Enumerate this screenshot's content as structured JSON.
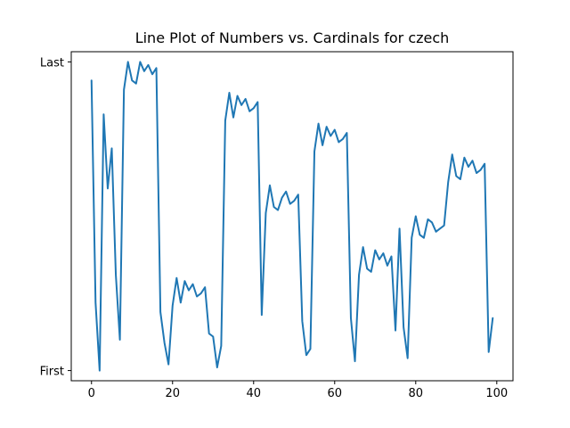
{
  "chart_data": {
    "type": "line",
    "title": "Line Plot of Numbers vs. Cardinals for czech",
    "xlabel": "",
    "ylabel": "",
    "xlim": [
      -5,
      104
    ],
    "ylim": [
      -0.033,
      1.033
    ],
    "xticks": [
      0,
      20,
      40,
      60,
      80,
      100
    ],
    "xtick_labels": [
      "0",
      "20",
      "40",
      "60",
      "80",
      "100"
    ],
    "yticks": [
      0,
      1
    ],
    "ytick_labels": [
      "First",
      "Last"
    ],
    "grid": false,
    "series": [
      {
        "color": "#1f77b4",
        "x": [
          0,
          1,
          2,
          3,
          4,
          5,
          6,
          7,
          8,
          9,
          10,
          11,
          12,
          13,
          14,
          15,
          16,
          17,
          18,
          19,
          20,
          21,
          22,
          23,
          24,
          25,
          26,
          27,
          28,
          29,
          30,
          31,
          32,
          33,
          34,
          35,
          36,
          37,
          38,
          39,
          40,
          41,
          42,
          43,
          44,
          45,
          46,
          47,
          48,
          49,
          50,
          51,
          52,
          53,
          54,
          55,
          56,
          57,
          58,
          59,
          60,
          61,
          62,
          63,
          64,
          65,
          66,
          67,
          68,
          69,
          70,
          71,
          72,
          73,
          74,
          75,
          76,
          77,
          78,
          79,
          80,
          81,
          82,
          83,
          84,
          85,
          86,
          87,
          88,
          89,
          90,
          91,
          92,
          93,
          94,
          95,
          96,
          97,
          98,
          99
        ],
        "values": [
          0.94,
          0.22,
          0.0,
          0.83,
          0.59,
          0.72,
          0.31,
          0.1,
          0.91,
          1.0,
          0.94,
          0.93,
          1.0,
          0.97,
          0.99,
          0.96,
          0.98,
          0.19,
          0.09,
          0.02,
          0.21,
          0.3,
          0.22,
          0.29,
          0.26,
          0.28,
          0.24,
          0.25,
          0.27,
          0.12,
          0.11,
          0.01,
          0.08,
          0.81,
          0.9,
          0.82,
          0.89,
          0.86,
          0.88,
          0.84,
          0.85,
          0.87,
          0.18,
          0.51,
          0.6,
          0.53,
          0.52,
          0.56,
          0.58,
          0.54,
          0.55,
          0.57,
          0.16,
          0.05,
          0.07,
          0.71,
          0.8,
          0.73,
          0.79,
          0.76,
          0.78,
          0.74,
          0.75,
          0.77,
          0.17,
          0.03,
          0.31,
          0.4,
          0.33,
          0.32,
          0.39,
          0.36,
          0.38,
          0.34,
          0.37,
          0.13,
          0.46,
          0.14,
          0.04,
          0.43,
          0.5,
          0.44,
          0.43,
          0.49,
          0.48,
          0.45,
          0.46,
          0.47,
          0.61,
          0.7,
          0.63,
          0.62,
          0.69,
          0.66,
          0.68,
          0.64,
          0.65,
          0.67,
          0.06,
          0.17
        ]
      }
    ]
  }
}
